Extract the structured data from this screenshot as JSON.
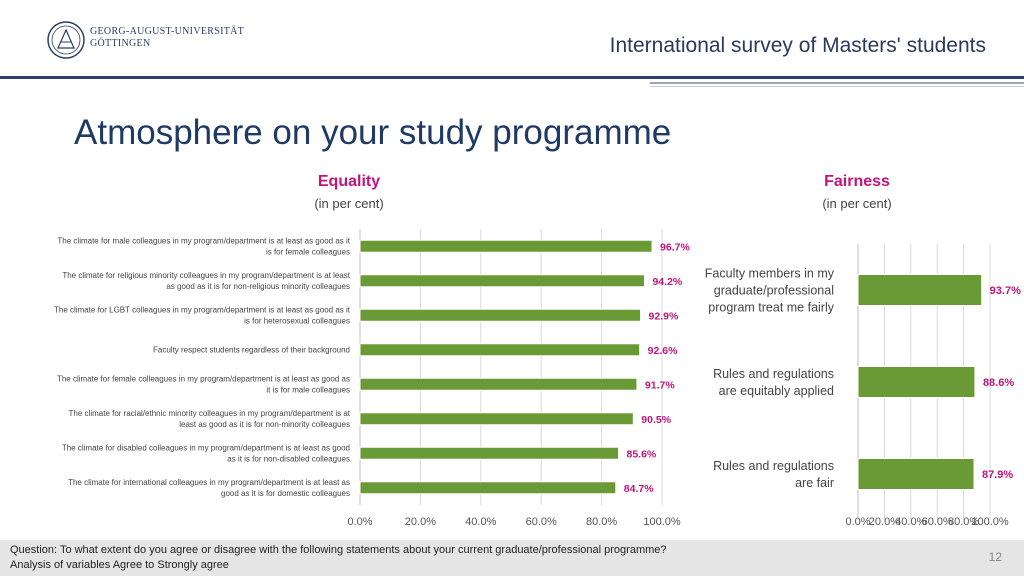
{
  "header": {
    "university_line1": "GEORG-AUGUST-UNIVERSITÄT",
    "university_line2": "GÖTTINGEN",
    "title": "International survey of Masters' students"
  },
  "page": {
    "title": "Atmosphere on your study programme",
    "number": "12"
  },
  "footer": {
    "question": "Question: To what extent do you agree or disagree with the following statements about your current graduate/professional programme?",
    "analysis": "Analysis of variables Agree to Strongly agree"
  },
  "colors": {
    "bar": "#6a9a35",
    "label": "#c0157a",
    "grid": "#d9d9d9"
  },
  "chart_data": [
    {
      "type": "bar",
      "orientation": "horizontal",
      "title": "Equality",
      "subtitle": "(in per cent)",
      "categories": [
        [
          "The climate for male colleagues in my program/department is at least as good as it",
          "is for female colleagues"
        ],
        [
          "The climate for religious minority colleagues in my program/department is at least",
          "as good as it is for non-religious minority colleagues"
        ],
        [
          "The climate for LGBT colleagues in my program/department is at least as good as it",
          "is for heterosexual colleagues"
        ],
        [
          "Faculty respect students regardless of their background"
        ],
        [
          "The climate for female colleagues in my program/department is at least as good as",
          "it is for male colleagues"
        ],
        [
          "The climate for racial/ethnic minority colleagues in my program/department is at",
          "least as good as it is for non-minority colleagues"
        ],
        [
          "The climate for disabled colleagues in my program/department is at least as good",
          "as it is for non-disabled colleagues"
        ],
        [
          "The climate for international colleagues in my program/department is at least as",
          "good as it is for domestic colleagues"
        ]
      ],
      "values": [
        96.7,
        94.2,
        92.9,
        92.6,
        91.7,
        90.5,
        85.6,
        84.7
      ],
      "value_labels": [
        "96.7%",
        "94.2%",
        "92.9%",
        "92.6%",
        "91.7%",
        "90.5%",
        "85.6%",
        "84.7%"
      ],
      "xlim": [
        0,
        100
      ],
      "ticks": [
        "0.0%",
        "20.0%",
        "40.0%",
        "60.0%",
        "80.0%",
        "100.0%"
      ]
    },
    {
      "type": "bar",
      "orientation": "horizontal",
      "title": "Fairness",
      "subtitle": "(in per cent)",
      "categories": [
        [
          "Faculty members in my",
          "graduate/professional",
          "program treat me fairly"
        ],
        [
          "Rules and regulations",
          "are equitably applied"
        ],
        [
          "Rules and regulations",
          "are fair"
        ]
      ],
      "values": [
        93.7,
        88.6,
        87.9
      ],
      "value_labels": [
        "93.7%",
        "88.6%",
        "87.9%"
      ],
      "xlim": [
        0,
        100
      ],
      "ticks": [
        "0.0%",
        "20.0%",
        "40.0%",
        "60.0%",
        "80.0%",
        "100.0%"
      ]
    }
  ]
}
